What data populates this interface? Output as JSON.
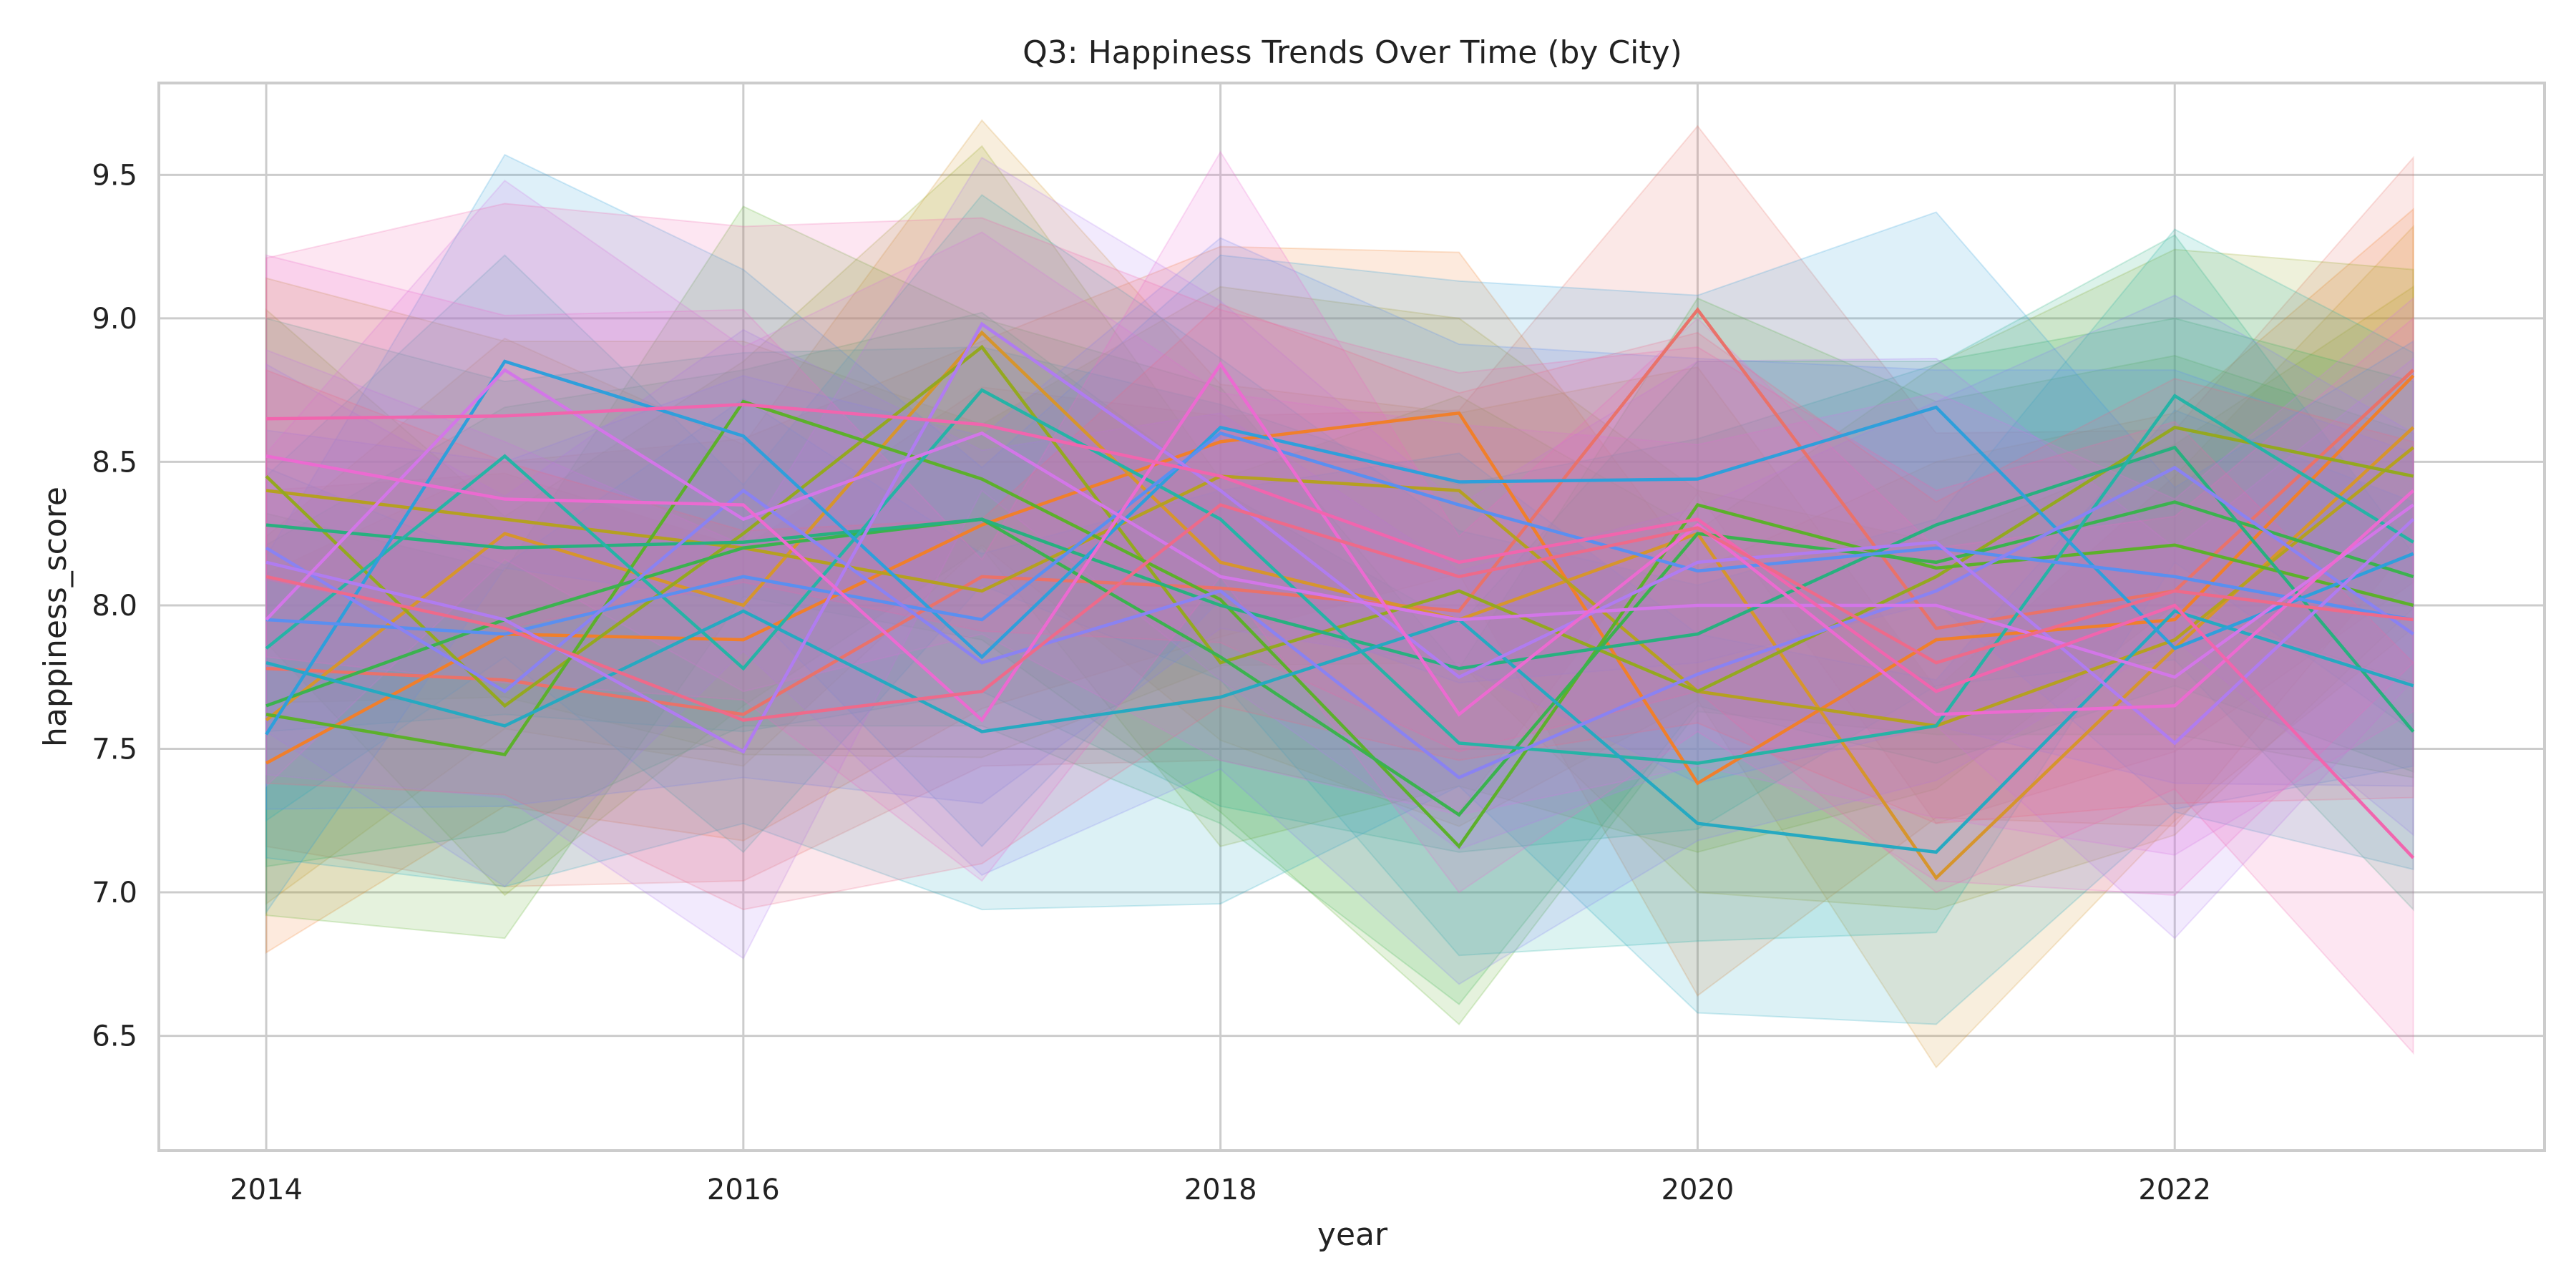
{
  "chart_data": {
    "type": "line",
    "title": "Q3: Happiness Trends Over Time (by City)",
    "xlabel": "year",
    "ylabel": "happiness_score",
    "xlim": [
      2013.55,
      2023.55
    ],
    "ylim": [
      6.1,
      9.82
    ],
    "x_ticks": [
      2014,
      2016,
      2018,
      2020,
      2022
    ],
    "y_ticks": [
      6.5,
      7.0,
      7.5,
      8.0,
      8.5,
      9.0,
      9.5
    ],
    "grid": true,
    "legend": "none",
    "confidence_bands": true,
    "x": [
      2014,
      2015,
      2016,
      2017,
      2018,
      2019,
      2020,
      2021,
      2022,
      2023
    ],
    "series": [
      {
        "color": "#e9726a",
        "values": [
          7.78,
          7.74,
          7.62,
          8.1,
          8.06,
          7.98,
          9.03,
          7.92,
          8.05,
          8.82
        ]
      },
      {
        "color": "#f07f2b",
        "values": [
          7.45,
          7.9,
          7.88,
          8.28,
          8.57,
          8.67,
          7.38,
          7.88,
          7.95,
          8.8
        ]
      },
      {
        "color": "#d6952d",
        "values": [
          7.6,
          8.25,
          8.0,
          8.95,
          8.15,
          7.95,
          8.25,
          7.05,
          7.85,
          8.62
        ]
      },
      {
        "color": "#b5a021",
        "values": [
          8.4,
          8.3,
          8.2,
          8.05,
          8.45,
          8.4,
          7.7,
          7.58,
          7.88,
          8.55
        ]
      },
      {
        "color": "#94a820",
        "values": [
          8.45,
          7.65,
          8.25,
          8.9,
          7.8,
          8.05,
          7.7,
          8.1,
          8.62,
          8.45
        ]
      },
      {
        "color": "#5cb02b",
        "values": [
          7.62,
          7.48,
          8.71,
          8.44,
          8.02,
          7.16,
          8.35,
          8.13,
          8.21,
          8.0
        ]
      },
      {
        "color": "#3bb24f",
        "values": [
          7.65,
          7.95,
          8.2,
          8.3,
          7.82,
          7.27,
          8.25,
          8.15,
          8.36,
          8.1
        ]
      },
      {
        "color": "#28b07f",
        "values": [
          8.28,
          8.2,
          8.22,
          8.3,
          8.0,
          7.78,
          7.9,
          8.28,
          8.55,
          7.56
        ]
      },
      {
        "color": "#26b3a6",
        "values": [
          7.85,
          8.52,
          7.78,
          8.75,
          8.3,
          7.52,
          7.45,
          7.58,
          8.73,
          8.22
        ]
      },
      {
        "color": "#26a9c1",
        "values": [
          7.8,
          7.58,
          7.98,
          7.56,
          7.68,
          7.95,
          7.24,
          7.14,
          7.98,
          7.72
        ]
      },
      {
        "color": "#2f9fdb",
        "values": [
          7.55,
          8.85,
          8.59,
          7.82,
          8.62,
          8.43,
          8.44,
          8.69,
          7.85,
          8.18
        ]
      },
      {
        "color": "#5a8ff0",
        "values": [
          7.95,
          7.9,
          8.1,
          7.95,
          8.6,
          8.35,
          8.12,
          8.2,
          8.1,
          7.95
        ]
      },
      {
        "color": "#8a82f2",
        "values": [
          8.2,
          7.7,
          8.4,
          7.8,
          8.05,
          7.4,
          7.76,
          8.05,
          8.48,
          7.9
        ]
      },
      {
        "color": "#b07cf0",
        "values": [
          8.15,
          7.95,
          7.49,
          8.98,
          8.4,
          7.75,
          8.15,
          8.22,
          7.52,
          8.3
        ]
      },
      {
        "color": "#d376e8",
        "values": [
          7.95,
          8.82,
          8.3,
          8.6,
          8.1,
          7.95,
          8.0,
          8.0,
          7.75,
          8.35
        ]
      },
      {
        "color": "#ec6ad1",
        "values": [
          8.52,
          8.37,
          8.35,
          7.6,
          8.84,
          7.62,
          8.28,
          7.62,
          7.65,
          8.4
        ]
      },
      {
        "color": "#f165ae",
        "values": [
          8.65,
          8.66,
          8.7,
          8.63,
          8.45,
          8.15,
          8.3,
          7.7,
          8.0,
          7.12
        ]
      },
      {
        "color": "#ee6a8a",
        "values": [
          8.1,
          7.92,
          7.6,
          7.7,
          8.35,
          8.1,
          8.27,
          7.8,
          8.05,
          7.95
        ]
      }
    ]
  }
}
